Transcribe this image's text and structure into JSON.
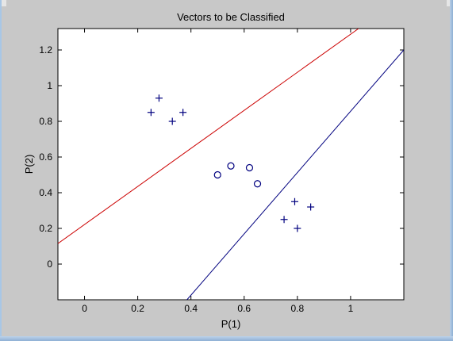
{
  "chart_data": {
    "type": "scatter",
    "title": "Vectors to be Classified",
    "xlabel": "P(1)",
    "ylabel": "P(2)",
    "xlim": [
      -0.1,
      1.2
    ],
    "ylim": [
      -0.2,
      1.32
    ],
    "xticks": [
      0,
      0.2,
      0.4,
      0.6,
      0.8,
      1
    ],
    "xtick_labels": [
      "0",
      "0.2",
      "0.4",
      "0.6",
      "0.8",
      "1"
    ],
    "yticks": [
      0,
      0.2,
      0.4,
      0.6,
      0.8,
      1,
      1.2
    ],
    "ytick_labels": [
      "0",
      "0.2",
      "0.4",
      "0.6",
      "0.8",
      "1",
      "1.2"
    ],
    "grid": false,
    "series": [
      {
        "marker": "+",
        "color": "#00007f",
        "points": [
          [
            0.25,
            0.85
          ],
          [
            0.28,
            0.93
          ],
          [
            0.33,
            0.8
          ],
          [
            0.37,
            0.85
          ],
          [
            0.75,
            0.25
          ],
          [
            0.79,
            0.35
          ],
          [
            0.8,
            0.2
          ],
          [
            0.85,
            0.32
          ]
        ]
      },
      {
        "marker": "o",
        "color": "#00007f",
        "points": [
          [
            0.5,
            0.5
          ],
          [
            0.55,
            0.55
          ],
          [
            0.62,
            0.54
          ],
          [
            0.65,
            0.45
          ]
        ]
      }
    ],
    "lines": [
      {
        "color": "#cc0000",
        "points": [
          [
            -0.1,
            0.115
          ],
          [
            1.03,
            1.32
          ]
        ]
      },
      {
        "color": "#00007f",
        "points": [
          [
            0.385,
            -0.2
          ],
          [
            1.2,
            1.2
          ]
        ]
      }
    ],
    "colors": {
      "frame": "#c8c8c8",
      "axes_bg": "#ffffff",
      "axis": "#000000"
    }
  }
}
